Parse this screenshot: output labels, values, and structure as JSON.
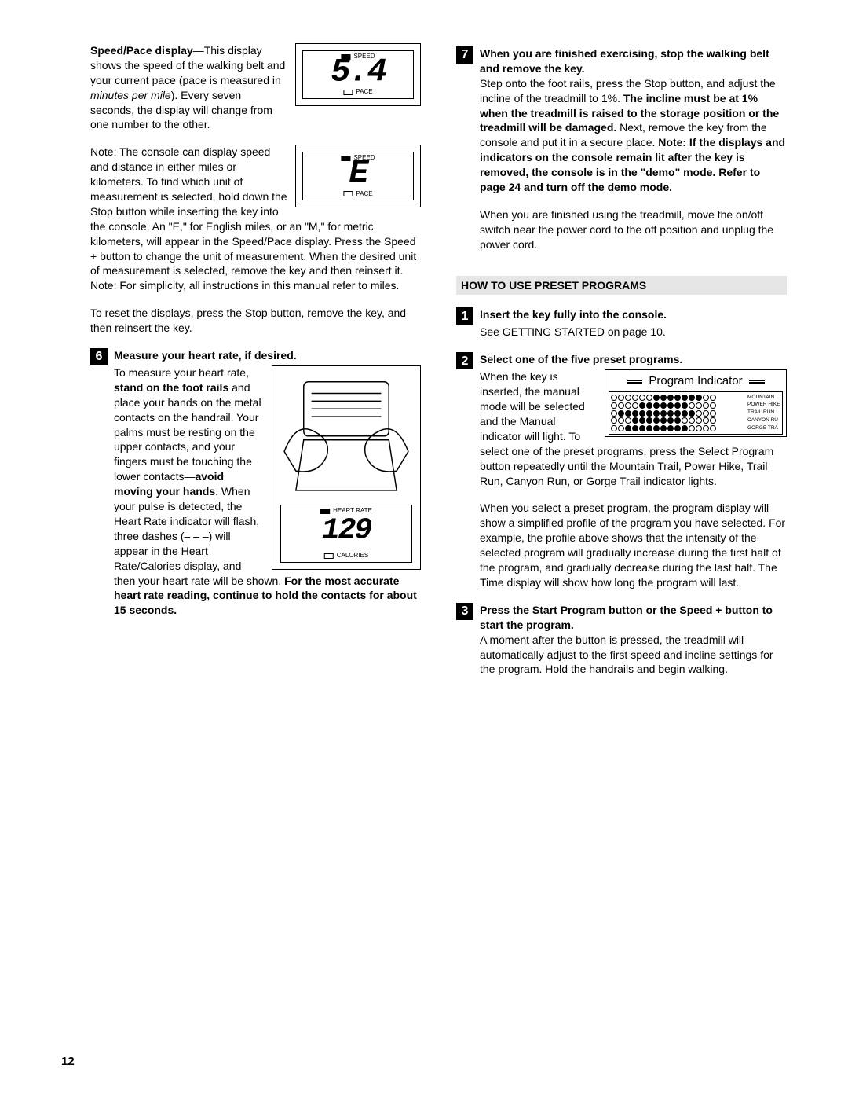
{
  "page_number": "12",
  "left": {
    "speed_pace_label": "Speed/Pace display",
    "speed_pace_para_a": "—This display shows the speed of the walking belt and your current pace (pace is mea­sured in ",
    "speed_pace_italic": "minutes per mile",
    "speed_pace_para_b": "). Every seven seconds, the display will change from one number to the other.",
    "lcd1": {
      "top": "SPEED",
      "bot": "PACE",
      "val": "5.4"
    },
    "note_para": "Note: The console can display speed and dis­tance in either miles or kilometers. To find which unit of measure­ment is selected, hold down the Stop button while inserting the key into the console. An \"E,\" for English miles, or an \"M,\" for metric kilometers, will appear in the Speed/Pace display. Press the Speed + button to change the unit of measurement. When the desired unit of measurement is selected, remove the key and then reinsert it. Note: For simplicity, all instructions in this manual refer to miles.",
    "lcd2": {
      "top": "SPEED",
      "bot": "PACE",
      "val": "E"
    },
    "reset_para": "To reset the displays, press the Stop button, re­move the key, and then reinsert the key.",
    "step6_num": "6",
    "step6_title": "Measure your heart rate, if desired.",
    "hr_a": "To measure your heart rate, ",
    "hr_b": "stand on the foot rails",
    "hr_c": " and place your hands on the metal contacts on the handrail. Your palms must be resting on the upper contacts, and your fingers must be touching the lower con­tacts—",
    "hr_d": "avoid moving your hands",
    "hr_e": ". When your pulse is detected, the Heart Rate indicator will flash, three dashes (– – –) will appear in the Heart Rate/Calories dis­play, and then your heart rate will be shown. ",
    "hr_f": "For the most accurate heart rate reading, continue to hold the contacts for about 15 seconds.",
    "lcd3": {
      "top": "HEART RATE",
      "bot": "CALORIES",
      "val": "129"
    }
  },
  "right": {
    "step7_num": "7",
    "step7_title": "When you are finished exercising, stop the walking belt and remove the key.",
    "step7_a": "Step onto the foot rails, press the Stop button, and adjust the incline of the treadmill to 1%. ",
    "step7_b": "The incline must be at 1% when the treadmill is raised to the storage position or the treadmill will be damaged.",
    "step7_c": " Next, remove the key from the console and put it in a secure place. ",
    "step7_d": "Note: If the displays and indicators on the console remain lit after the key is removed, the console is in the \"demo\" mode. Refer to page 24 and turn off the demo mode.",
    "step7_e": "When you are finished using the treadmill, move the on/off switch near the power cord to the off position and unplug the power cord.",
    "section": "HOW TO USE PRESET PROGRAMS",
    "s1_num": "1",
    "s1_title": "Insert the key fully into the console.",
    "s1_body": "See GETTING STARTED on page 10.",
    "s2_num": "2",
    "s2_title": "Select one of the five preset programs.",
    "s2_a": "When the key is inserted, the manual mode will be selected and the Manual indicator will light. To select one of the preset programs, press the Select Program button repeatedly until the Mountain Trail, Power Hike, Trail Run, Canyon Run, or Gorge Trail indicator lights.",
    "s2_b": "When you select a preset program, the program display will show a simplified profile of the pro­gram you have selected. For example, the profile above shows that the intensity of the selected pro­gram will gradually increase during the first half of the program, and gradually decrease during the last half. The Time display will show how long the program will last.",
    "prog_title": "Program Indicator",
    "prog_rows": [
      {
        "label": "MOUNTAIN",
        "dots": "000000111111100"
      },
      {
        "label": "POWER HIKE",
        "dots": "000011111110000"
      },
      {
        "label": "TRAIL RUN",
        "dots": "011111111111000"
      },
      {
        "label": "CANYON RU",
        "dots": "000111111100000"
      },
      {
        "label": "GORGE TRA",
        "dots": "001111111110000"
      }
    ],
    "s3_num": "3",
    "s3_title": "Press the Start Program button or the Speed + button to start the program.",
    "s3_body": "A moment after the button is pressed, the tread­mill will automatically adjust to the first speed and incline settings for the program. Hold the handrails and begin walking."
  }
}
